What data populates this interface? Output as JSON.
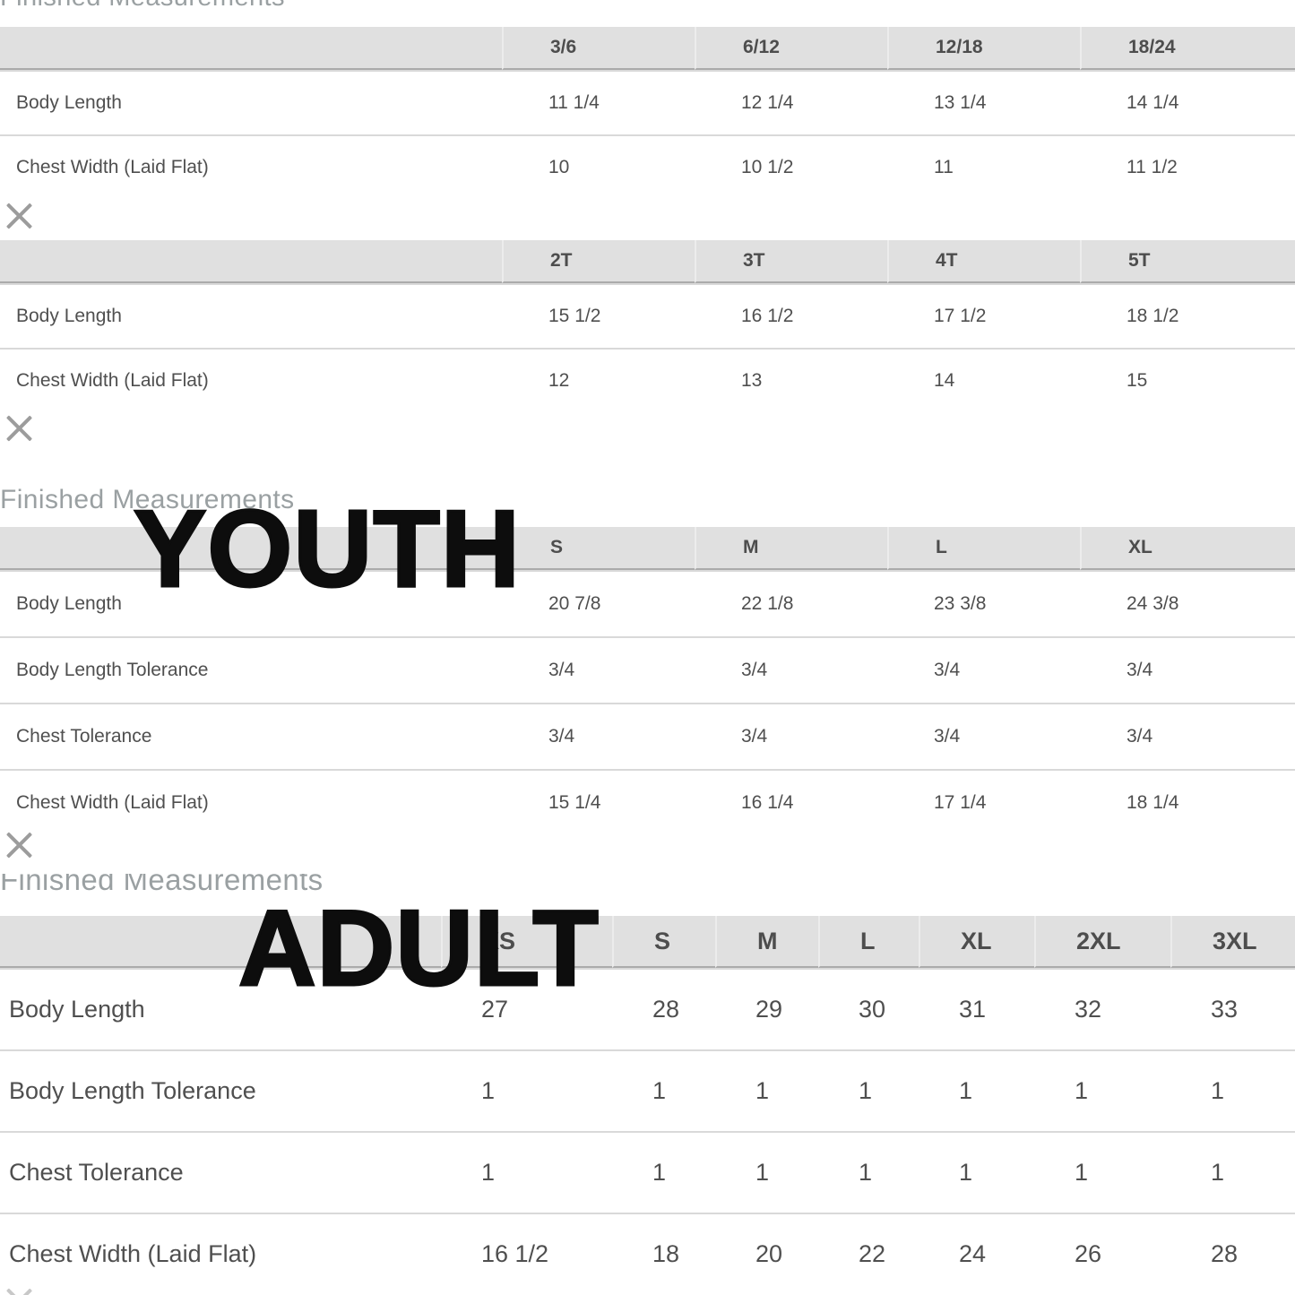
{
  "sections": {
    "top": {
      "title": "Finished Measurements"
    },
    "youth": {
      "title": "Finished Measurements",
      "overlay": "YOUTH"
    },
    "adult": {
      "title": "Finished Measurements",
      "overlay": "ADULT"
    }
  },
  "tables": [
    {
      "name": "infant-months",
      "columns": [
        "3/6",
        "6/12",
        "12/18",
        "18/24"
      ],
      "rows": [
        {
          "label": "Body Length",
          "values": [
            "11 1/4",
            "12 1/4",
            "13 1/4",
            "14 1/4"
          ]
        },
        {
          "label": "Chest Width (Laid Flat)",
          "values": [
            "10",
            "10 1/2",
            "11",
            "11 1/2"
          ]
        }
      ]
    },
    {
      "name": "toddler",
      "columns": [
        "2T",
        "3T",
        "4T",
        "5T"
      ],
      "rows": [
        {
          "label": "Body Length",
          "values": [
            "15 1/2",
            "16 1/2",
            "17 1/2",
            "18 1/2"
          ]
        },
        {
          "label": "Chest Width (Laid Flat)",
          "values": [
            "12",
            "13",
            "14",
            "15"
          ]
        }
      ]
    },
    {
      "name": "youth",
      "columns": [
        "S",
        "M",
        "L",
        "XL"
      ],
      "rows": [
        {
          "label": "Body Length",
          "values": [
            "20 7/8",
            "22 1/8",
            "23 3/8",
            "24 3/8"
          ]
        },
        {
          "label": "Body Length Tolerance",
          "values": [
            "3/4",
            "3/4",
            "3/4",
            "3/4"
          ]
        },
        {
          "label": "Chest Tolerance",
          "values": [
            "3/4",
            "3/4",
            "3/4",
            "3/4"
          ]
        },
        {
          "label": "Chest Width (Laid Flat)",
          "values": [
            "15 1/4",
            "16 1/4",
            "17 1/4",
            "18 1/4"
          ]
        }
      ]
    },
    {
      "name": "adult",
      "columns": [
        "XS",
        "S",
        "M",
        "L",
        "XL",
        "2XL",
        "3XL"
      ],
      "rows": [
        {
          "label": "Body Length",
          "values": [
            "27",
            "28",
            "29",
            "30",
            "31",
            "32",
            "33"
          ]
        },
        {
          "label": "Body Length Tolerance",
          "values": [
            "1",
            "1",
            "1",
            "1",
            "1",
            "1",
            "1"
          ]
        },
        {
          "label": "Chest Tolerance",
          "values": [
            "1",
            "1",
            "1",
            "1",
            "1",
            "1",
            "1"
          ]
        },
        {
          "label": "Chest Width (Laid Flat)",
          "values": [
            "16 1/2",
            "18",
            "20",
            "22",
            "24",
            "26",
            "28"
          ]
        }
      ]
    }
  ],
  "colors": {
    "header_bg": "#e0e0e0",
    "header_border": "#ababab",
    "row_divider": "#d9d9d9",
    "body_text": "#4f4f4f",
    "title_text": "#9aa0a2",
    "close_icon": "#9c9c9c",
    "overlay_text": "#0d0d0d"
  }
}
